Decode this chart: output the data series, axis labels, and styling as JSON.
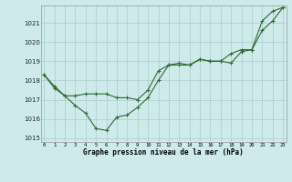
{
  "line1": [
    1018.3,
    1017.6,
    1017.2,
    1016.7,
    1016.3,
    1015.5,
    1015.4,
    1016.1,
    1016.2,
    1016.6,
    1017.1,
    1018.0,
    1018.8,
    1018.8,
    1018.8,
    1019.1,
    1019.0,
    1019.0,
    1018.9,
    1019.5,
    1019.6,
    1021.1,
    1021.6,
    1021.8
  ],
  "line2": [
    1018.3,
    1017.7,
    1017.2,
    1017.2,
    1017.3,
    1017.3,
    1017.3,
    1017.1,
    1017.1,
    1017.0,
    1017.5,
    1018.5,
    1018.8,
    1018.9,
    1018.8,
    1019.1,
    1019.0,
    1019.0,
    1019.4,
    1019.6,
    1019.6,
    1020.6,
    1021.1,
    1021.8
  ],
  "x": [
    0,
    1,
    2,
    3,
    4,
    5,
    6,
    7,
    8,
    9,
    10,
    11,
    12,
    13,
    14,
    15,
    16,
    17,
    18,
    19,
    20,
    21,
    22,
    23
  ],
  "ylim": [
    1014.8,
    1021.9
  ],
  "yticks": [
    1015,
    1016,
    1017,
    1018,
    1019,
    1020,
    1021
  ],
  "xtick_labels": [
    "0",
    "1",
    "2",
    "3",
    "4",
    "5",
    "6",
    "7",
    "8",
    "9",
    "10",
    "11",
    "12",
    "13",
    "14",
    "15",
    "16",
    "17",
    "18",
    "19",
    "20",
    "21",
    "22",
    "23"
  ],
  "line_color": "#2d6a2d",
  "bg_color": "#ceeaea",
  "grid_color": "#aacccc",
  "xlabel": "Graphe pression niveau de la mer (hPa)",
  "marker": "+"
}
